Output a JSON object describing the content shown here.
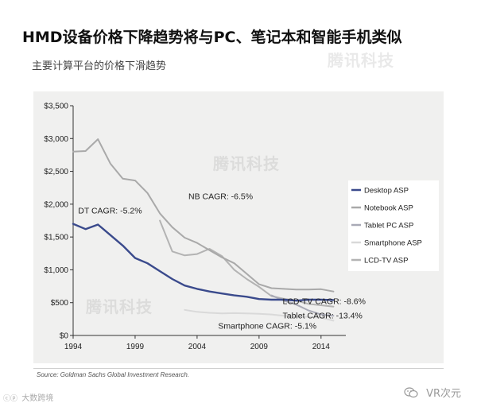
{
  "header": {
    "title": "HMD设备价格下降趋势将与PC、笔记本和智能手机类似",
    "subtitle": "主要计算平台的价格下滑趋势"
  },
  "watermarks": [
    "腾讯科技",
    "腾讯科技",
    "腾讯科技"
  ],
  "source": "Source: Goldman Sachs Global Investment Research.",
  "footer": {
    "left_text": "大数跨境",
    "right_text": "VR次元",
    "left_icon": "cc-logo-icon",
    "right_icon": "wechat-icon"
  },
  "chart_data": {
    "type": "line",
    "xlim": [
      1994,
      2016
    ],
    "ylim": [
      0,
      3500
    ],
    "x_ticks": [
      1994,
      1999,
      2004,
      2009,
      2014
    ],
    "y_ticks": [
      0,
      500,
      1000,
      1500,
      2000,
      2500,
      3000,
      3500
    ],
    "y_tick_labels": [
      "$0",
      "$500",
      "$1,000",
      "$1,500",
      "$2,000",
      "$2,500",
      "$3,000",
      "$3,500"
    ],
    "grid": "none",
    "legend_position": "right",
    "series": [
      {
        "name": "Desktop ASP",
        "color": "#3a4a8c",
        "x": [
          1994,
          1995,
          1996,
          1997,
          1998,
          1999,
          2000,
          2001,
          2002,
          2003,
          2004,
          2005,
          2006,
          2007,
          2008,
          2009,
          2010,
          2011,
          2012,
          2013,
          2014,
          2015
        ],
        "y": [
          1700,
          1620,
          1690,
          1530,
          1370,
          1180,
          1100,
          980,
          860,
          760,
          710,
          670,
          640,
          610,
          590,
          555,
          545,
          545,
          530,
          545,
          545,
          540
        ]
      },
      {
        "name": "Notebook ASP",
        "color": "#a9a9a9",
        "x": [
          1994,
          1995,
          1996,
          1997,
          1998,
          1999,
          2000,
          2001,
          2002,
          2003,
          2004,
          2005,
          2006,
          2007,
          2008,
          2009,
          2010,
          2011,
          2012,
          2013,
          2014,
          2015
        ],
        "y": [
          2800,
          2810,
          2990,
          2620,
          2390,
          2360,
          2170,
          1860,
          1650,
          1490,
          1410,
          1300,
          1190,
          1100,
          940,
          780,
          720,
          710,
          700,
          700,
          705,
          670
        ]
      },
      {
        "name": "Tablet PC ASP",
        "color": "#a9aab6",
        "x": [
          2010,
          2011,
          2012,
          2013,
          2014,
          2015
        ],
        "y": [
          610,
          530,
          470,
          380,
          320,
          300
        ]
      },
      {
        "name": "Smartphone ASP",
        "color": "#d9d9d9",
        "x": [
          2003,
          2004,
          2005,
          2006,
          2007,
          2008,
          2009,
          2010,
          2011,
          2012,
          2013,
          2014,
          2015
        ],
        "y": [
          390,
          360,
          345,
          335,
          340,
          335,
          330,
          320,
          300,
          290,
          285,
          270,
          225
        ]
      },
      {
        "name": "LCD-TV ASP",
        "color": "#b3b3b3",
        "x": [
          2001,
          2002,
          2003,
          2004,
          2005,
          2006,
          2007,
          2008,
          2009,
          2010,
          2011,
          2012,
          2013,
          2014,
          2015
        ],
        "y": [
          1750,
          1280,
          1220,
          1240,
          1320,
          1210,
          1000,
          860,
          740,
          600,
          560,
          530,
          480,
          460,
          440
        ]
      }
    ],
    "annotations": [
      {
        "text": "NB CAGR: -6.5%",
        "x": 2003.3,
        "y": 2080,
        "anchor": "start"
      },
      {
        "text": "DT CAGR: -5.2%",
        "x": 1994.4,
        "y": 1860,
        "anchor": "start"
      },
      {
        "text": "LCD-TV CAGR: -8.6%",
        "x": 2010.9,
        "y": 480,
        "anchor": "start"
      },
      {
        "text": "Tablet CAGR: -13.4%",
        "x": 2010.9,
        "y": 260,
        "anchor": "start"
      },
      {
        "text": "Smartphone CAGR: -5.1%",
        "x": 2005.7,
        "y": 100,
        "anchor": "start"
      }
    ]
  }
}
